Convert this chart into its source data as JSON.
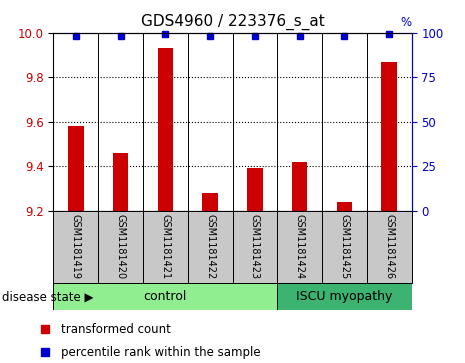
{
  "title": "GDS4960 / 223376_s_at",
  "samples": [
    "GSM1181419",
    "GSM1181420",
    "GSM1181421",
    "GSM1181422",
    "GSM1181423",
    "GSM1181424",
    "GSM1181425",
    "GSM1181426"
  ],
  "bar_values": [
    9.58,
    9.46,
    9.93,
    9.28,
    9.39,
    9.42,
    9.24,
    9.87
  ],
  "percentile_values": [
    98,
    98,
    99,
    98,
    98,
    98,
    98,
    99
  ],
  "ylim_left": [
    9.2,
    10.0
  ],
  "ylim_right": [
    0,
    100
  ],
  "yticks_left": [
    9.2,
    9.4,
    9.6,
    9.8,
    10.0
  ],
  "yticks_right": [
    0,
    25,
    50,
    75,
    100
  ],
  "bar_color": "#CC0000",
  "percentile_color": "#0000CC",
  "control_group": [
    0,
    1,
    2,
    3,
    4
  ],
  "disease_group": [
    5,
    6,
    7
  ],
  "control_label": "control",
  "disease_label": "ISCU myopathy",
  "control_color": "#90EE90",
  "disease_color": "#3CB371",
  "sample_bg_color": "#C8C8C8",
  "legend_bar_label": "transformed count",
  "legend_dot_label": "percentile rank within the sample",
  "disease_state_label": "disease state",
  "title_fontsize": 11,
  "tick_fontsize": 8.5,
  "label_fontsize": 8,
  "bar_width": 0.35
}
